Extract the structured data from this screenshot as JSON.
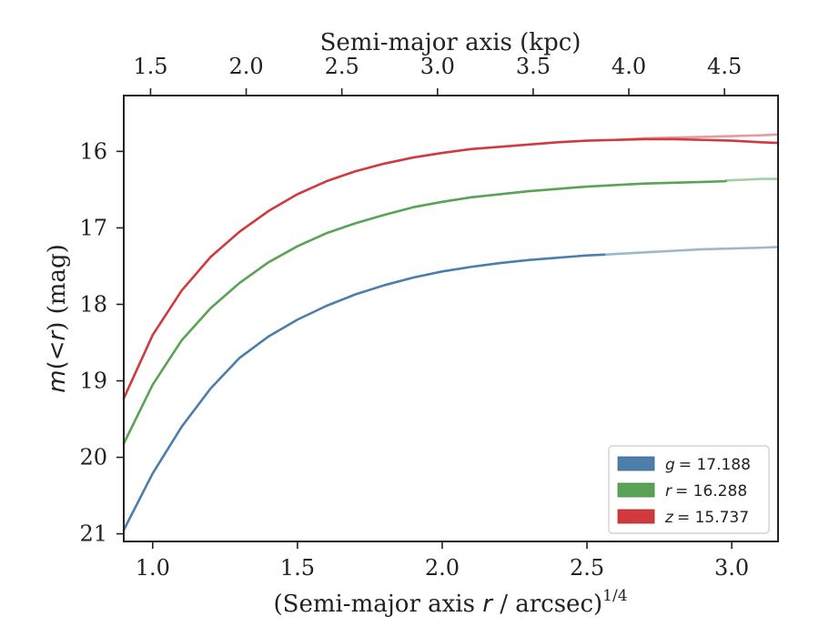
{
  "chart_data": {
    "type": "line",
    "title": "",
    "xlabel": "(Semi-major axis r / arcsec)",
    "xlabel_parts": [
      "(Semi-major axis ",
      "r",
      " / arcsec)",
      "1/4"
    ],
    "x2label": "Semi-major axis (kpc)",
    "ylabel": "m(<r) (mag)",
    "ylabel_parts": [
      "m",
      "(<",
      "r",
      ") (mag)"
    ],
    "xlim": [
      0.9,
      3.16
    ],
    "ylim": [
      21.1,
      15.27
    ],
    "x2lim": [
      1.36,
      4.78
    ],
    "x_ticks": [
      1.0,
      1.5,
      2.0,
      2.5,
      3.0
    ],
    "x_tick_labels": [
      "1.0",
      "1.5",
      "2.0",
      "2.5",
      "3.0"
    ],
    "y_ticks": [
      16,
      17,
      18,
      19,
      20,
      21
    ],
    "y_tick_labels": [
      "16",
      "17",
      "18",
      "19",
      "20",
      "21"
    ],
    "x2_ticks": [
      1.5,
      2.0,
      2.5,
      3.0,
      3.5,
      4.0,
      4.5
    ],
    "x2_tick_labels": [
      "1.5",
      "2.0",
      "2.5",
      "3.0",
      "3.5",
      "4.0",
      "4.5"
    ],
    "legend_position": "bottom-right",
    "series": [
      {
        "name": "g",
        "label_var": "g",
        "label_value": "= 17.188",
        "color": "#4c7eab",
        "fit_color": "#9db7cf",
        "x": [
          0.9,
          1.0,
          1.1,
          1.2,
          1.3,
          1.4,
          1.5,
          1.6,
          1.7,
          1.8,
          1.9,
          2.0,
          2.1,
          2.2,
          2.3,
          2.4,
          2.5,
          2.56
        ],
        "y": [
          20.95,
          20.21,
          19.6,
          19.1,
          18.7,
          18.42,
          18.2,
          18.02,
          17.87,
          17.75,
          17.65,
          17.57,
          17.51,
          17.46,
          17.42,
          17.39,
          17.36,
          17.35
        ],
        "fit_x": [
          2.56,
          2.7,
          2.8,
          2.9,
          3.0,
          3.1,
          3.16
        ],
        "fit_y": [
          17.35,
          17.32,
          17.3,
          17.28,
          17.27,
          17.26,
          17.25
        ]
      },
      {
        "name": "r",
        "label_var": "r",
        "label_value": "= 16.288",
        "color": "#5aa256",
        "fit_color": "#a4cfa2",
        "x": [
          0.9,
          1.0,
          1.1,
          1.2,
          1.3,
          1.4,
          1.5,
          1.6,
          1.7,
          1.8,
          1.9,
          2.0,
          2.1,
          2.2,
          2.3,
          2.4,
          2.5,
          2.6,
          2.7,
          2.8,
          2.9,
          2.98
        ],
        "y": [
          19.82,
          19.05,
          18.47,
          18.05,
          17.72,
          17.45,
          17.24,
          17.07,
          16.94,
          16.83,
          16.73,
          16.66,
          16.6,
          16.56,
          16.52,
          16.49,
          16.46,
          16.44,
          16.42,
          16.41,
          16.4,
          16.39
        ],
        "fit_x": [
          2.98,
          3.05,
          3.1,
          3.16
        ],
        "fit_y": [
          16.38,
          16.37,
          16.36,
          16.36
        ]
      },
      {
        "name": "z",
        "label_var": "z",
        "label_value": "= 15.737",
        "color": "#d03a3f",
        "fit_color": "#e69b9e",
        "x": [
          0.9,
          1.0,
          1.1,
          1.2,
          1.3,
          1.4,
          1.5,
          1.6,
          1.7,
          1.8,
          1.9,
          2.0,
          2.1,
          2.2,
          2.3,
          2.4,
          2.5,
          2.6,
          2.7,
          2.8,
          2.9,
          3.0,
          3.1,
          3.16
        ],
        "y": [
          19.23,
          18.4,
          17.82,
          17.38,
          17.05,
          16.78,
          16.56,
          16.39,
          16.26,
          16.16,
          16.08,
          16.02,
          15.97,
          15.94,
          15.91,
          15.88,
          15.86,
          15.85,
          15.84,
          15.84,
          15.85,
          15.86,
          15.88,
          15.89
        ],
        "fit_x": [
          2.6,
          2.7,
          2.8,
          2.9,
          3.0,
          3.1,
          3.16
        ],
        "fit_y": [
          15.85,
          15.83,
          15.82,
          15.81,
          15.8,
          15.79,
          15.78
        ]
      }
    ]
  }
}
